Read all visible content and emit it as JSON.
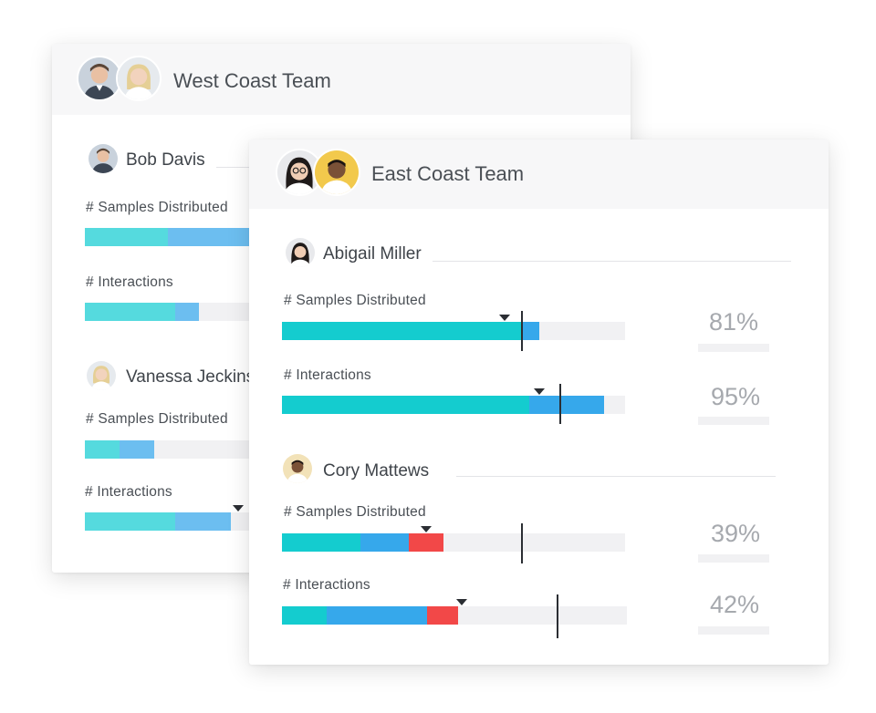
{
  "west": {
    "title": "West Coast Team",
    "members": [
      {
        "name": "Bob Davis",
        "metrics": [
          {
            "label": "# Samples Distributed",
            "progress": [
              0.24,
              0.24
            ]
          },
          {
            "label": "# Interactions",
            "progress": [
              0.26,
              0.07
            ]
          }
        ]
      },
      {
        "name": "Vanessa Jeckins",
        "metrics": [
          {
            "label": "# Samples Distributed",
            "progress": [
              0.1,
              0.1
            ]
          },
          {
            "label": "# Interactions",
            "progress": [
              0.26,
              0.16
            ]
          }
        ]
      }
    ]
  },
  "east": {
    "title": "East Coast Team",
    "members": [
      {
        "name": "Abigail Miller",
        "metrics": [
          {
            "label": "# Samples Distributed",
            "percent": "81%",
            "progress": [
              0.7,
              0.05,
              0.0
            ],
            "target": 0.7,
            "marker": 0.65
          },
          {
            "label": "# Interactions",
            "percent": "95%",
            "progress": [
              0.72,
              0.22,
              0.0
            ],
            "target": 0.81,
            "marker": 0.75
          }
        ]
      },
      {
        "name": "Cory Mattews",
        "metrics": [
          {
            "label": "# Samples Distributed",
            "percent": "39%",
            "progress": [
              0.23,
              0.14,
              0.1
            ],
            "target": 0.7,
            "marker": 0.42
          },
          {
            "label": "# Interactions",
            "percent": "42%",
            "progress": [
              0.13,
              0.29,
              0.09
            ],
            "target": 0.8,
            "marker": 0.52
          }
        ]
      }
    ]
  },
  "colors": {
    "bar_primary": "#14cccf",
    "bar_secondary": "#36a8eb",
    "bar_behind": "#f24848",
    "track": "#f1f1f3",
    "target": "#2b2e33"
  },
  "icons": [
    "avatar-man-suit",
    "avatar-woman-blonde",
    "avatar-woman-glasses",
    "avatar-man-yellow",
    "avatar-man-beige"
  ]
}
